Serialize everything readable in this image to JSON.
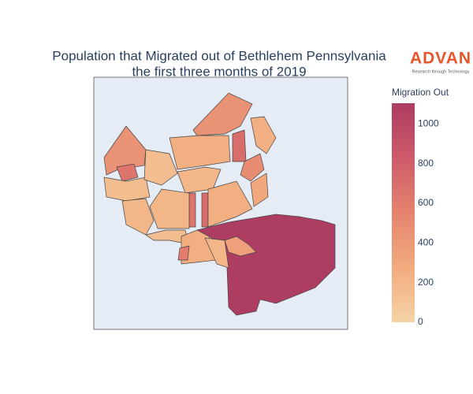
{
  "chart_data": {
    "type": "choropleth",
    "title": "Population that Migrated out of Bethlehem Pennsylvania",
    "subtitle": "the first three months of 2019",
    "logo_text": "ADVAN",
    "logo_tagline": "Research through Technology",
    "colorbar_title": "Migration Out",
    "colorscale": [
      "#f5d3a6",
      "#f2ab7e",
      "#e5836f",
      "#cd5b69",
      "#ad3c62"
    ],
    "zlim": [
      0,
      1105
    ],
    "zticks": [
      0,
      200,
      400,
      600,
      800,
      1000
    ],
    "values": [
      1100,
      450,
      250,
      700,
      500,
      300,
      450,
      650,
      150,
      200,
      150,
      250,
      200,
      650,
      700,
      200,
      250,
      150,
      250,
      600,
      350,
      200
    ]
  }
}
